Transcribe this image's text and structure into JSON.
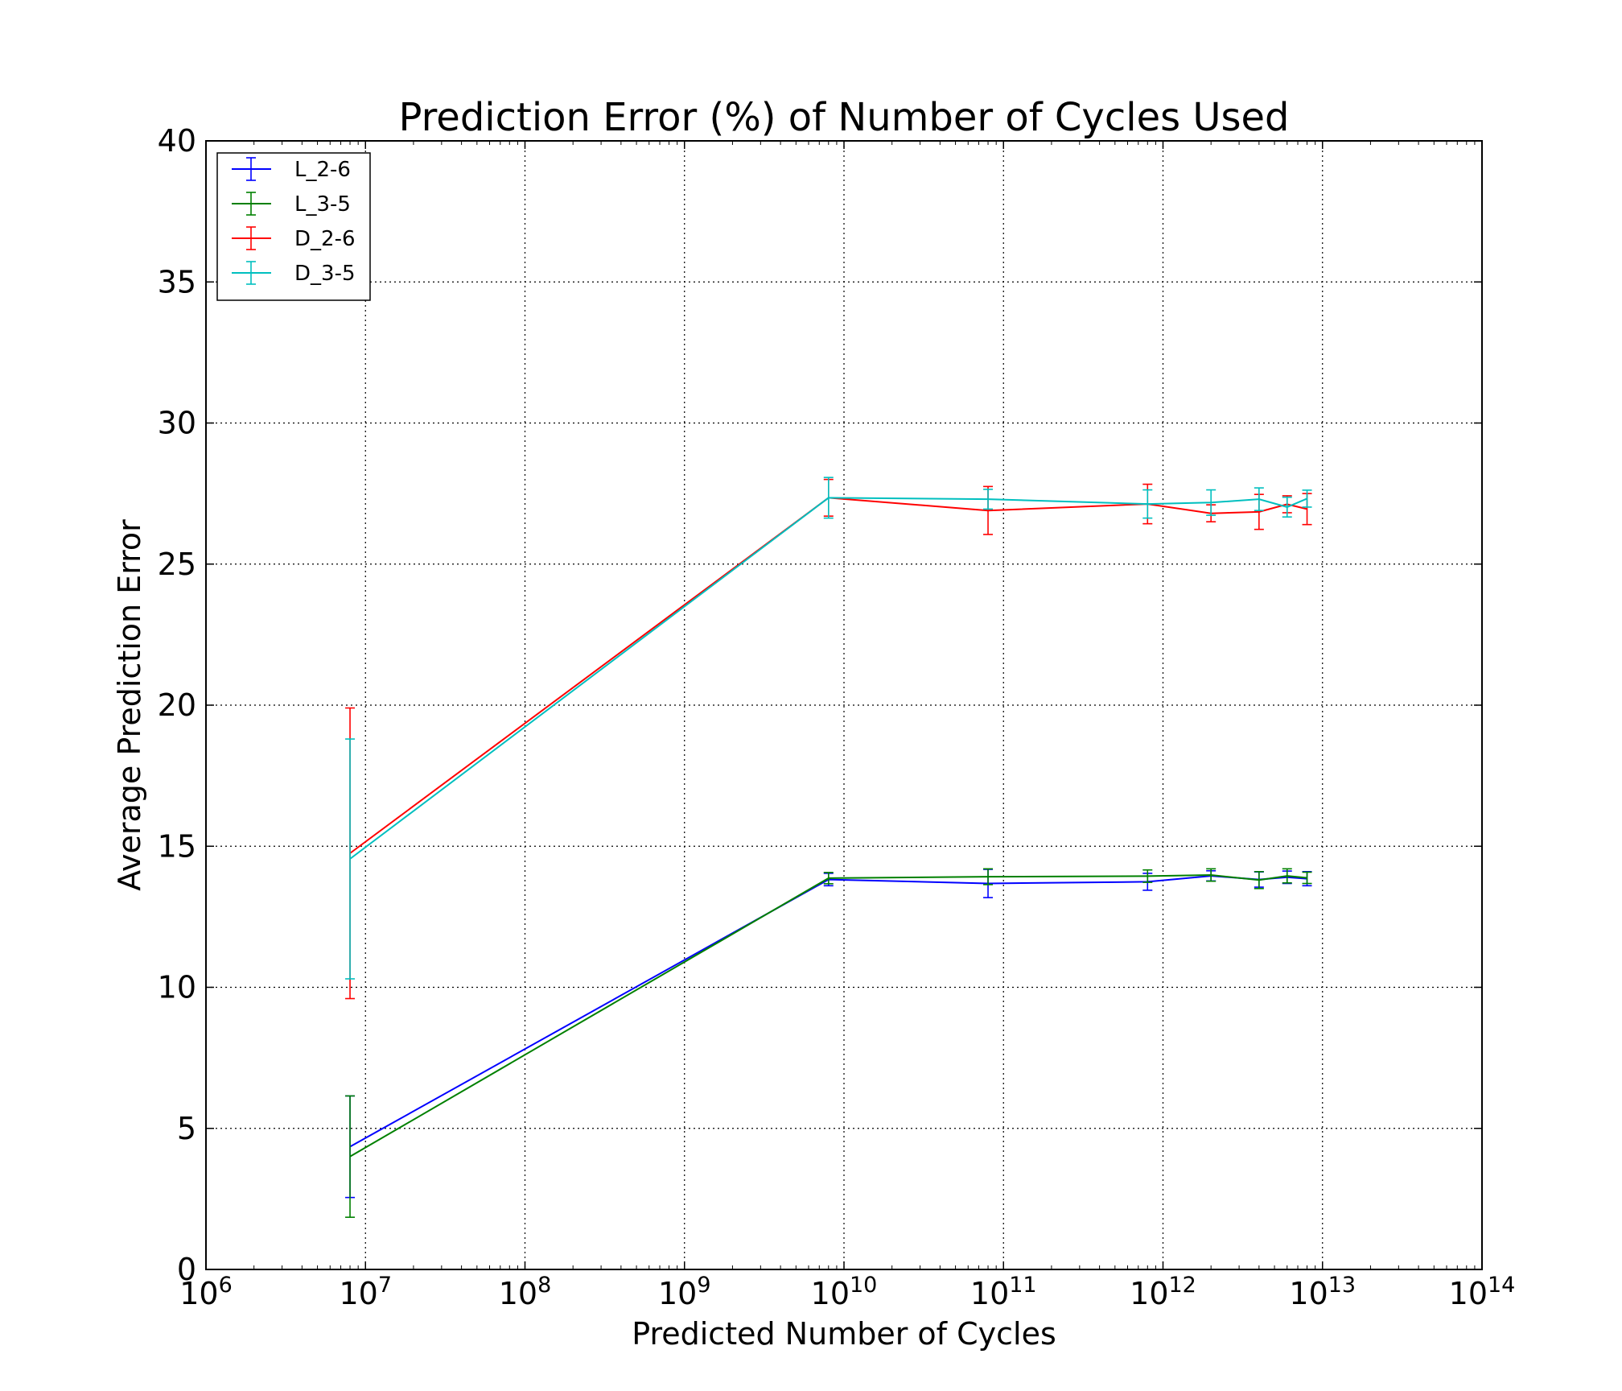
{
  "chart_data": {
    "type": "line",
    "title": "Prediction Error (%) of Number of Cycles Used",
    "xlabel": "Predicted Number of Cycles",
    "ylabel": "Average Prediction Error",
    "x_scale": "log",
    "xlim": [
      1000000,
      100000000000000
    ],
    "ylim": [
      0,
      40
    ],
    "x_ticks": [
      {
        "base": "10",
        "exp": "6"
      },
      {
        "base": "10",
        "exp": "7"
      },
      {
        "base": "10",
        "exp": "8"
      },
      {
        "base": "10",
        "exp": "9"
      },
      {
        "base": "10",
        "exp": "10"
      },
      {
        "base": "10",
        "exp": "11"
      },
      {
        "base": "10",
        "exp": "12"
      },
      {
        "base": "10",
        "exp": "13"
      },
      {
        "base": "10",
        "exp": "14"
      }
    ],
    "y_ticks": [
      "0",
      "5",
      "10",
      "15",
      "20",
      "25",
      "30",
      "35",
      "40"
    ],
    "grid": true,
    "legend_position": "top-left",
    "x": [
      8000000,
      8000000000,
      80000000000,
      800000000000,
      2000000000000,
      4000000000000,
      6000000000000,
      8000000000000
    ],
    "series": [
      {
        "name": "L_2-6",
        "color": "#0000ff",
        "values": [
          4.35,
          13.82,
          13.68,
          13.74,
          13.95,
          13.82,
          13.9,
          13.85
        ],
        "errors": [
          1.8,
          0.22,
          0.5,
          0.3,
          0.18,
          0.27,
          0.22,
          0.25
        ]
      },
      {
        "name": "L_3-5",
        "color": "#008000",
        "values": [
          4.0,
          13.87,
          13.92,
          13.94,
          13.98,
          13.8,
          13.95,
          13.88
        ],
        "errors": [
          2.15,
          0.2,
          0.28,
          0.22,
          0.22,
          0.3,
          0.25,
          0.2
        ]
      },
      {
        "name": "D_2-6",
        "color": "#ff0000",
        "values": [
          14.75,
          27.35,
          26.9,
          27.13,
          26.8,
          26.85,
          27.12,
          26.95
        ],
        "errors": [
          5.15,
          0.65,
          0.85,
          0.7,
          0.3,
          0.62,
          0.3,
          0.55
        ]
      },
      {
        "name": "D_3-5",
        "color": "#00bfbf",
        "values": [
          14.55,
          27.35,
          27.3,
          27.13,
          27.18,
          27.3,
          27.02,
          27.32
        ],
        "errors": [
          4.25,
          0.72,
          0.35,
          0.5,
          0.45,
          0.4,
          0.35,
          0.3
        ]
      }
    ]
  }
}
